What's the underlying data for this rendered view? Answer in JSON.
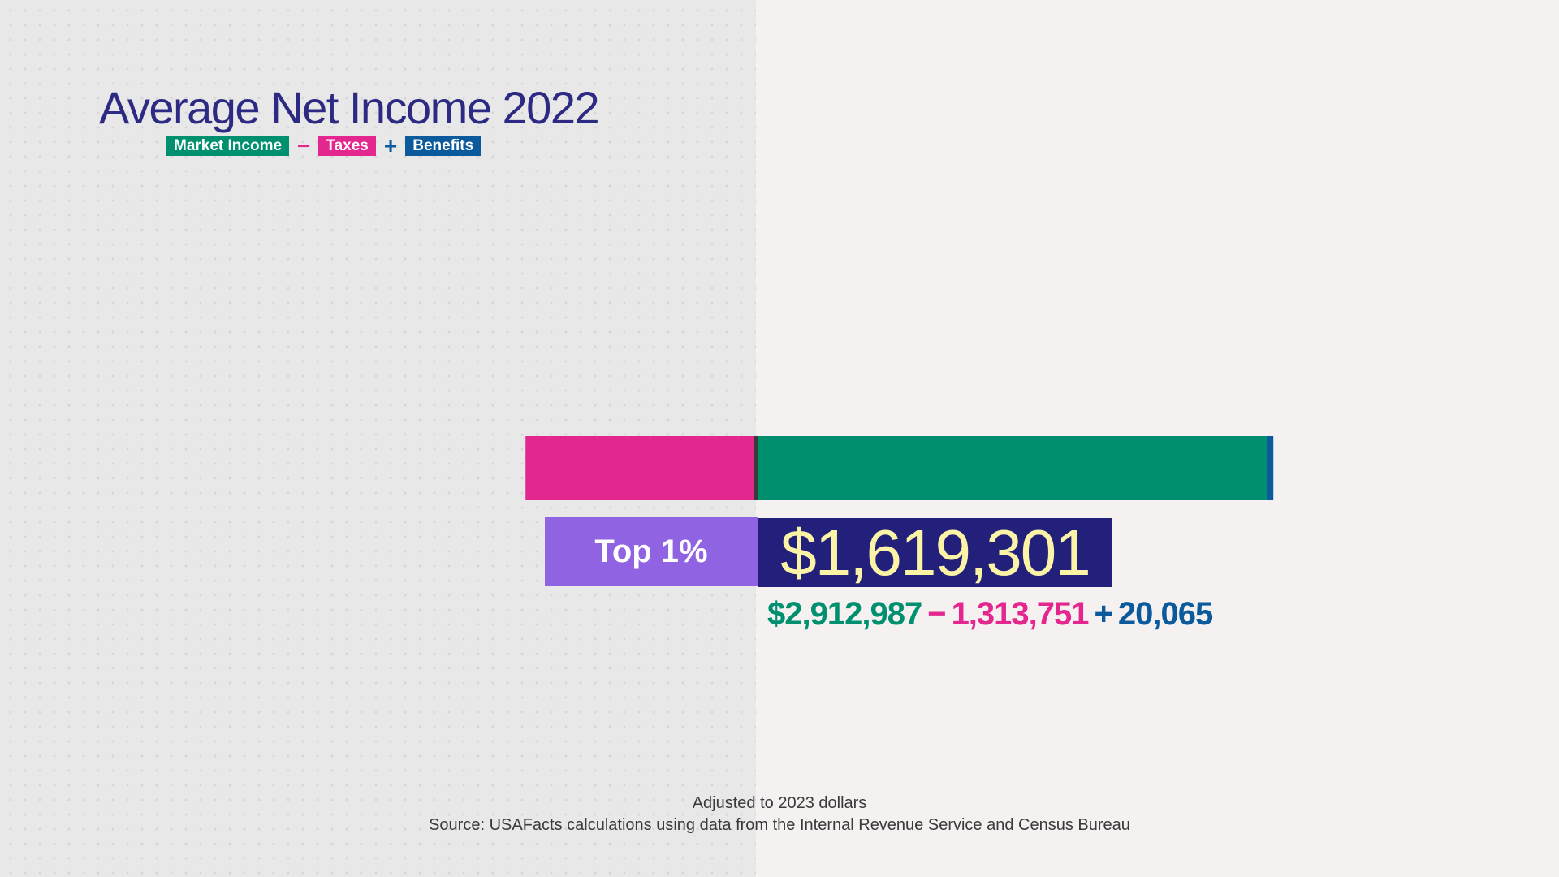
{
  "title": "Average Net Income 2022",
  "legend": {
    "items": [
      {
        "label": "Market Income",
        "color": "#00906f"
      },
      {
        "op": "−",
        "color": "#e4268f"
      },
      {
        "label": "Taxes",
        "color": "#e4268f"
      },
      {
        "op": "+",
        "color": "#0b5a9c"
      },
      {
        "label": "Benefits",
        "color": "#0b5a9c"
      }
    ]
  },
  "chart_data": {
    "type": "bar",
    "orientation": "horizontal",
    "categories": [
      "Top 1%"
    ],
    "series": [
      {
        "name": "Taxes",
        "values": [
          -1313751
        ],
        "color": "#e4268f"
      },
      {
        "name": "Market Income",
        "values": [
          2912987
        ],
        "color": "#00906f"
      },
      {
        "name": "Benefits",
        "values": [
          20065
        ],
        "color": "#0b5a9c"
      }
    ],
    "net_value": 1619301,
    "net_label": "$1,619,301",
    "category_label": "Top 1%",
    "equation": {
      "market_income": "$2,912,987",
      "minus_sign": "−",
      "taxes": "1,313,751",
      "plus_sign": "+",
      "benefits": "20,065"
    },
    "xlim": [
      -1313751,
      2933052
    ],
    "grid": false,
    "legend_placement": "top-left"
  },
  "colors": {
    "title": "#2d2a83",
    "market_income": "#00906f",
    "taxes": "#e4268f",
    "benefits": "#0b5a9c",
    "label_box": "#8f63e2",
    "net_box": "#22207a",
    "net_text": "#fbf3a6"
  },
  "footer": {
    "note": "Adjusted to 2023 dollars",
    "source": "Source: USAFacts calculations using data from the Internal Revenue Service and Census Bureau"
  }
}
